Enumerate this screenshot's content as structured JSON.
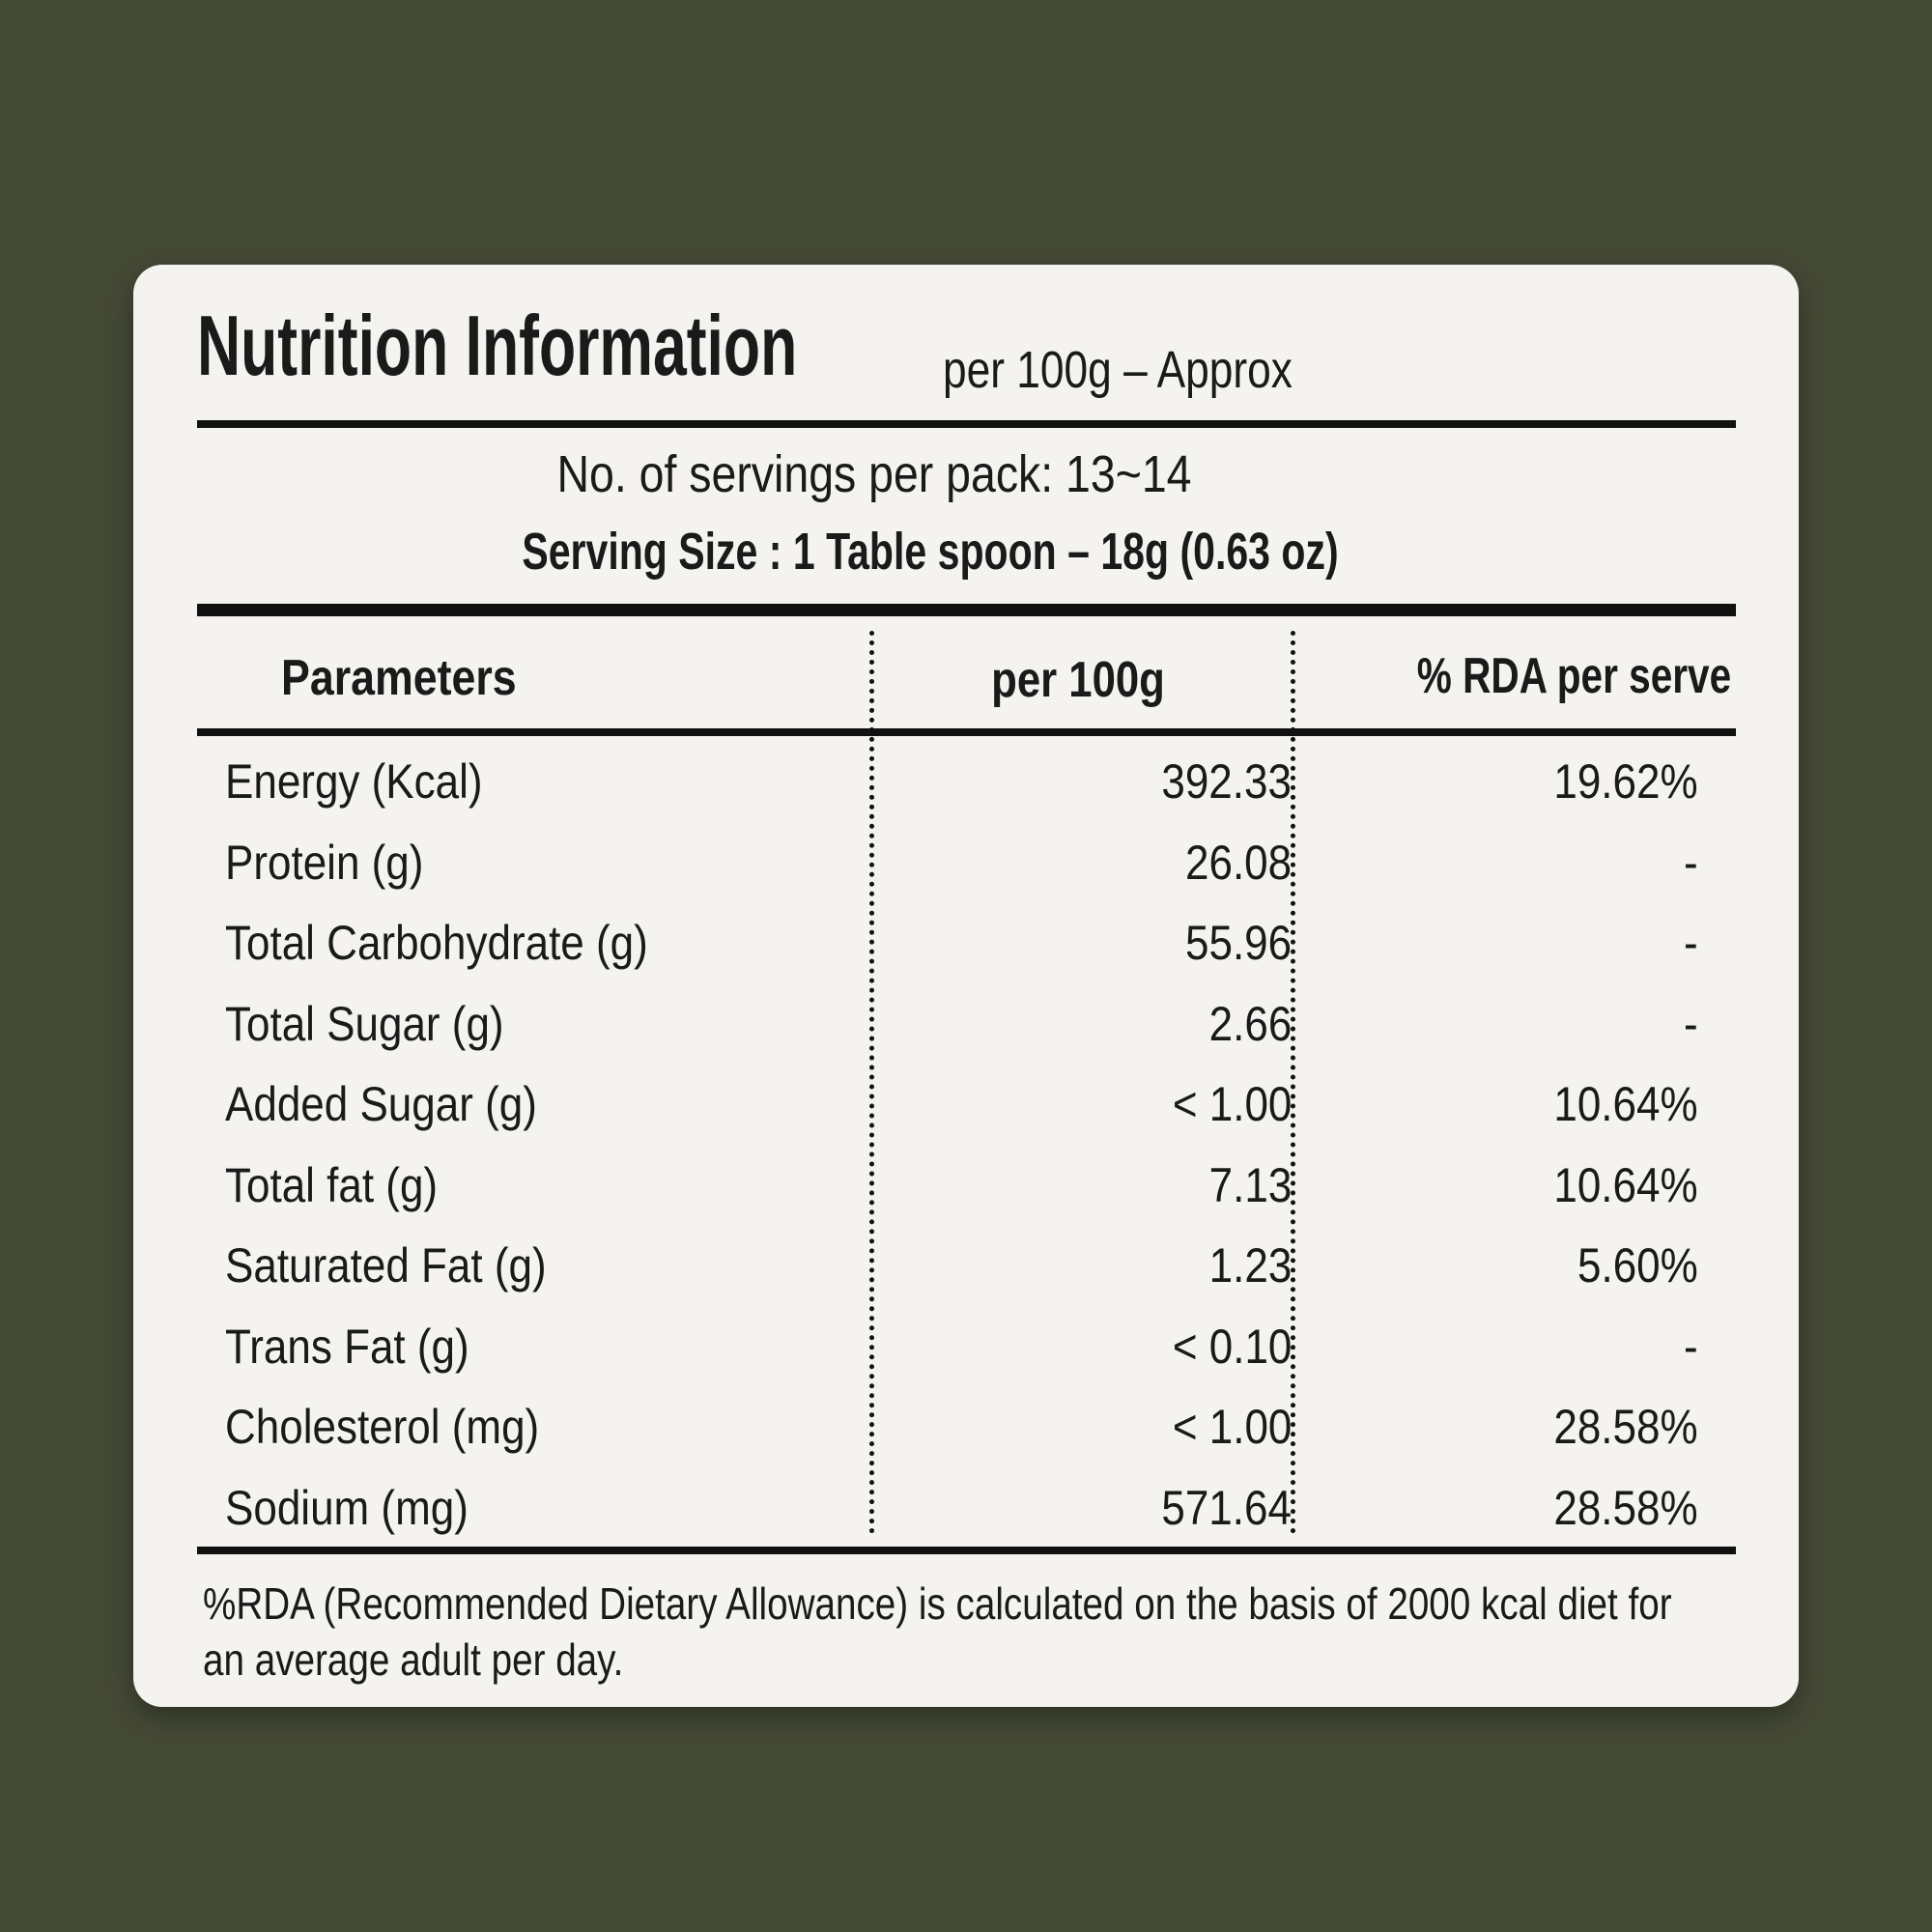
{
  "header": {
    "title": "Nutrition Information",
    "subtitle": "per 100g – Approx"
  },
  "servings": "No. of servings per pack: 13~14",
  "serving_size": "Serving Size : 1 Table spoon – 18g (0.63 oz)",
  "table": {
    "columns": [
      "Parameters",
      "per 100g",
      "% RDA per serve"
    ],
    "rows": [
      [
        "Energy (Kcal)",
        "392.33",
        "19.62%"
      ],
      [
        "Protein (g)",
        "26.08",
        "-"
      ],
      [
        "Total Carbohydrate (g)",
        "55.96",
        "-"
      ],
      [
        "Total Sugar (g)",
        "2.66",
        "-"
      ],
      [
        "Added Sugar (g)",
        "< 1.00",
        "10.64%"
      ],
      [
        "Total fat (g)",
        "7.13",
        "10.64%"
      ],
      [
        "Saturated Fat (g)",
        "1.23",
        "5.60%"
      ],
      [
        "Trans Fat (g)",
        "< 0.10",
        "-"
      ],
      [
        "Cholesterol (mg)",
        "< 1.00",
        "28.58%"
      ],
      [
        "Sodium (mg)",
        "571.64",
        "28.58%"
      ]
    ]
  },
  "footnote": "%RDA (Recommended Dietary Allowance) is calculated on the basis of 2000 kcal diet for an average adult per day."
}
